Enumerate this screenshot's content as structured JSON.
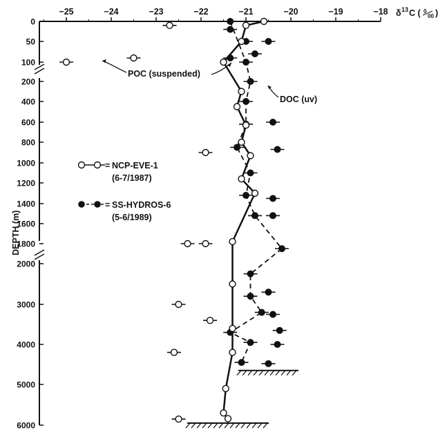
{
  "chart_data": {
    "type": "scatter",
    "title": "",
    "xlabel": "δ13C (‰)",
    "xlabel_parts": {
      "delta": "δ",
      "sup": "13",
      "c_unit": "C (",
      "unit_num": "0",
      "unit_den": "00",
      "close": ")"
    },
    "ylabel": "DEPTH (m)",
    "x_axis_position": "top",
    "xlim": [
      -25.6,
      -18
    ],
    "x_ticks": [
      -25,
      -24,
      -23,
      -22,
      -21,
      -20,
      -19,
      -18
    ],
    "y_ticks": [
      0,
      50,
      100,
      200,
      400,
      600,
      800,
      1000,
      1200,
      1400,
      1600,
      1800,
      2000,
      3000,
      4000,
      5000,
      6000
    ],
    "y_axis_breaks": "broken between 100 and 200 m and between 1800 and 2000 m",
    "series": [
      {
        "name": "NCP-EVE-1 (6-7/1987)",
        "marker": "open circle",
        "line": "solid",
        "data": [
          [
            -20.6,
            0
          ],
          [
            -21.0,
            10
          ],
          [
            -21.1,
            50
          ],
          [
            -21.5,
            100
          ],
          [
            -21.1,
            300
          ],
          [
            -21.2,
            450
          ],
          [
            -21.0,
            630
          ],
          [
            -21.1,
            800
          ],
          [
            -20.9,
            930
          ],
          [
            -21.1,
            1160
          ],
          [
            -20.8,
            1300
          ],
          [
            -21.3,
            1780
          ],
          [
            -21.3,
            2500
          ],
          [
            -21.3,
            3600
          ],
          [
            -21.3,
            4200
          ],
          [
            -21.45,
            5100
          ],
          [
            -21.5,
            5700
          ],
          [
            -21.4,
            5840
          ]
        ]
      },
      {
        "name": "SS-HYDROS-6 (5-6/1989)",
        "marker": "filled circle",
        "line": "dashed",
        "data": [
          [
            -21.35,
            0
          ],
          [
            -21.35,
            20
          ],
          [
            -20.5,
            50
          ],
          [
            -21.0,
            50
          ],
          [
            -20.8,
            80
          ],
          [
            -21.35,
            90
          ],
          [
            -21.0,
            100
          ],
          [
            -20.9,
            200
          ],
          [
            -21.0,
            400
          ],
          [
            -20.4,
            600
          ],
          [
            -21.0,
            620
          ],
          [
            -21.2,
            850
          ],
          [
            -20.3,
            870
          ],
          [
            -20.9,
            1100
          ],
          [
            -21.0,
            1320
          ],
          [
            -20.4,
            1350
          ],
          [
            -20.8,
            1520
          ],
          [
            -20.4,
            1520
          ],
          [
            -20.2,
            1850
          ],
          [
            -20.9,
            2250
          ],
          [
            -20.5,
            2700
          ],
          [
            -20.9,
            2800
          ],
          [
            -20.65,
            3200
          ],
          [
            -20.4,
            3250
          ],
          [
            -20.25,
            3650
          ],
          [
            -21.35,
            3700
          ],
          [
            -20.9,
            3950
          ],
          [
            -20.3,
            4000
          ],
          [
            -21.1,
            4450
          ],
          [
            -20.5,
            4480
          ]
        ]
      },
      {
        "name": "POC (suspended)",
        "marker": "open circle",
        "line": "none",
        "data": [
          [
            -22.7,
            10
          ],
          [
            -23.5,
            90
          ],
          [
            -25.0,
            100
          ],
          [
            -21.9,
            900
          ],
          [
            -22.3,
            1800
          ],
          [
            -21.9,
            1800
          ],
          [
            -22.5,
            3000
          ],
          [
            -21.8,
            3400
          ],
          [
            -22.6,
            4200
          ],
          [
            -22.5,
            5850
          ]
        ]
      }
    ],
    "annotations": [
      "POC (suspended)",
      "DOC (uv)"
    ],
    "legend": {
      "placement": "left",
      "entries": [
        {
          "symbol": "open",
          "line1": "NCP-EVE-1",
          "line2": "(6-7/1987)"
        },
        {
          "symbol": "filled",
          "line1": "SS-HYDROS-6",
          "line2": "(5-6/1989)"
        }
      ]
    },
    "seafloor_depths": [
      4650,
      5950
    ]
  }
}
